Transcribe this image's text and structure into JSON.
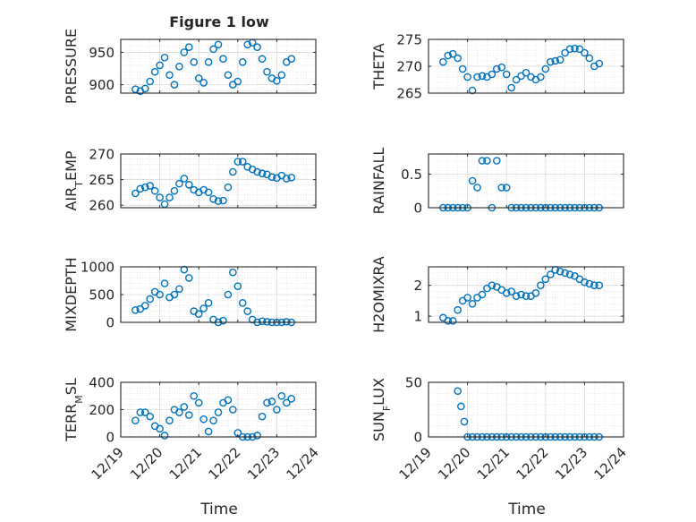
{
  "figure": {
    "title": "Figure 1 low",
    "xlabel": "Time",
    "x_ticks": [
      {
        "value": "2000-12-19",
        "label": "12/19"
      },
      {
        "value": "2000-12-20",
        "label": "12/20"
      },
      {
        "value": "2000-12-21",
        "label": "12/21"
      },
      {
        "value": "2000-12-22",
        "label": "12/22"
      },
      {
        "value": "2000-12-23",
        "label": "12/23"
      },
      {
        "value": "2000-12-24",
        "label": "12/24"
      }
    ],
    "xlim": [
      "2000-12-19",
      "2000-12-24"
    ],
    "marker_color": "#0072BD",
    "axis_color": "#262626",
    "grid": true
  },
  "chart_data": [
    {
      "type": "scatter",
      "ylabel": "PRESSURE",
      "ylim": [
        887,
        970
      ],
      "yticks": [
        900,
        950
      ],
      "x": [
        "2000-12-19T09:00",
        "2000-12-19T12:00",
        "2000-12-19T15:00",
        "2000-12-19T18:00",
        "2000-12-19T21:00",
        "2000-12-20T00:00",
        "2000-12-20T03:00",
        "2000-12-20T06:00",
        "2000-12-20T09:00",
        "2000-12-20T12:00",
        "2000-12-20T15:00",
        "2000-12-20T18:00",
        "2000-12-20T21:00",
        "2000-12-21T00:00",
        "2000-12-21T03:00",
        "2000-12-21T06:00",
        "2000-12-21T09:00",
        "2000-12-21T12:00",
        "2000-12-21T15:00",
        "2000-12-21T18:00",
        "2000-12-21T21:00",
        "2000-12-22T00:00",
        "2000-12-22T03:00",
        "2000-12-22T06:00",
        "2000-12-22T09:00",
        "2000-12-22T12:00",
        "2000-12-22T15:00",
        "2000-12-22T18:00",
        "2000-12-22T21:00",
        "2000-12-23T00:00",
        "2000-12-23T03:00",
        "2000-12-23T06:00",
        "2000-12-23T09:00"
      ],
      "y": [
        893,
        890,
        894,
        905,
        920,
        930,
        942,
        915,
        900,
        928,
        950,
        958,
        935,
        910,
        903,
        935,
        955,
        962,
        940,
        915,
        900,
        905,
        935,
        962,
        965,
        958,
        940,
        920,
        910,
        906,
        915,
        935,
        940
      ]
    },
    {
      "type": "scatter",
      "ylabel": "THETA",
      "ylim": [
        265,
        275
      ],
      "yticks": [
        265,
        270,
        275
      ],
      "x": [
        "2000-12-19T09:00",
        "2000-12-19T12:00",
        "2000-12-19T15:00",
        "2000-12-19T18:00",
        "2000-12-19T21:00",
        "2000-12-20T00:00",
        "2000-12-20T03:00",
        "2000-12-20T06:00",
        "2000-12-20T09:00",
        "2000-12-20T12:00",
        "2000-12-20T15:00",
        "2000-12-20T18:00",
        "2000-12-20T21:00",
        "2000-12-21T00:00",
        "2000-12-21T03:00",
        "2000-12-21T06:00",
        "2000-12-21T09:00",
        "2000-12-21T12:00",
        "2000-12-21T15:00",
        "2000-12-21T18:00",
        "2000-12-21T21:00",
        "2000-12-22T00:00",
        "2000-12-22T03:00",
        "2000-12-22T06:00",
        "2000-12-22T09:00",
        "2000-12-22T12:00",
        "2000-12-22T15:00",
        "2000-12-22T18:00",
        "2000-12-22T21:00",
        "2000-12-23T00:00",
        "2000-12-23T03:00",
        "2000-12-23T06:00",
        "2000-12-23T09:00"
      ],
      "y": [
        270.8,
        272,
        272.3,
        271.5,
        269.5,
        268,
        265.5,
        268,
        268.2,
        268,
        268.5,
        269.5,
        269.8,
        268.5,
        266,
        267.5,
        268.2,
        268.8,
        268,
        267.5,
        268,
        269.5,
        270.8,
        271,
        271.2,
        272.5,
        273.2,
        273.3,
        273.2,
        272.5,
        271.5,
        270,
        270.5
      ]
    },
    {
      "type": "scatter",
      "ylabel": "AIR_TEMP",
      "ylim": [
        259.5,
        270
      ],
      "yticks": [
        260,
        265,
        270
      ],
      "x": [
        "2000-12-19T09:00",
        "2000-12-19T12:00",
        "2000-12-19T15:00",
        "2000-12-19T18:00",
        "2000-12-19T21:00",
        "2000-12-20T00:00",
        "2000-12-20T03:00",
        "2000-12-20T06:00",
        "2000-12-20T09:00",
        "2000-12-20T12:00",
        "2000-12-20T15:00",
        "2000-12-20T18:00",
        "2000-12-20T21:00",
        "2000-12-21T00:00",
        "2000-12-21T03:00",
        "2000-12-21T06:00",
        "2000-12-21T09:00",
        "2000-12-21T12:00",
        "2000-12-21T15:00",
        "2000-12-21T18:00",
        "2000-12-21T21:00",
        "2000-12-22T00:00",
        "2000-12-22T03:00",
        "2000-12-22T06:00",
        "2000-12-22T09:00",
        "2000-12-22T12:00",
        "2000-12-22T15:00",
        "2000-12-22T18:00",
        "2000-12-22T21:00",
        "2000-12-23T00:00",
        "2000-12-23T03:00",
        "2000-12-23T06:00",
        "2000-12-23T09:00"
      ],
      "y": [
        262.3,
        263.2,
        263.5,
        263.8,
        262.8,
        261.5,
        260.2,
        261.5,
        262.8,
        264.2,
        265.2,
        264,
        263,
        262.5,
        263,
        262.5,
        261.2,
        260.8,
        260.9,
        263.5,
        266.5,
        268.5,
        268.5,
        267.5,
        267,
        266.5,
        266.2,
        266,
        265.5,
        265.3,
        265.8,
        265.2,
        265.4
      ]
    },
    {
      "type": "scatter",
      "ylabel": "RAINFALL",
      "ylim": [
        0,
        0.8
      ],
      "yticks": [
        0,
        0.5
      ],
      "x": [
        "2000-12-19T09:00",
        "2000-12-19T12:00",
        "2000-12-19T15:00",
        "2000-12-19T18:00",
        "2000-12-19T21:00",
        "2000-12-20T00:00",
        "2000-12-20T03:00",
        "2000-12-20T06:00",
        "2000-12-20T09:00",
        "2000-12-20T12:00",
        "2000-12-20T15:00",
        "2000-12-20T18:00",
        "2000-12-20T21:00",
        "2000-12-21T00:00",
        "2000-12-21T03:00",
        "2000-12-21T06:00",
        "2000-12-21T09:00",
        "2000-12-21T12:00",
        "2000-12-21T15:00",
        "2000-12-21T18:00",
        "2000-12-21T21:00",
        "2000-12-22T00:00",
        "2000-12-22T03:00",
        "2000-12-22T06:00",
        "2000-12-22T09:00",
        "2000-12-22T12:00",
        "2000-12-22T15:00",
        "2000-12-22T18:00",
        "2000-12-22T21:00",
        "2000-12-23T00:00",
        "2000-12-23T03:00",
        "2000-12-23T06:00",
        "2000-12-23T09:00"
      ],
      "y": [
        0,
        0,
        0,
        0,
        0,
        0,
        0.4,
        0.3,
        0.7,
        0.7,
        0,
        0.7,
        0.3,
        0.3,
        0,
        0,
        0,
        0,
        0,
        0,
        0,
        0,
        0,
        0,
        0,
        0,
        0,
        0,
        0,
        0,
        0,
        0,
        0
      ]
    },
    {
      "type": "scatter",
      "ylabel": "MIXDEPTH",
      "ylim": [
        0,
        1000
      ],
      "yticks": [
        0,
        500,
        1000
      ],
      "x": [
        "2000-12-19T09:00",
        "2000-12-19T12:00",
        "2000-12-19T15:00",
        "2000-12-19T18:00",
        "2000-12-19T21:00",
        "2000-12-20T00:00",
        "2000-12-20T03:00",
        "2000-12-20T06:00",
        "2000-12-20T09:00",
        "2000-12-20T12:00",
        "2000-12-20T15:00",
        "2000-12-20T18:00",
        "2000-12-20T21:00",
        "2000-12-21T00:00",
        "2000-12-21T03:00",
        "2000-12-21T06:00",
        "2000-12-21T09:00",
        "2000-12-21T12:00",
        "2000-12-21T15:00",
        "2000-12-21T18:00",
        "2000-12-21T21:00",
        "2000-12-22T00:00",
        "2000-12-22T03:00",
        "2000-12-22T06:00",
        "2000-12-22T09:00",
        "2000-12-22T12:00",
        "2000-12-22T15:00",
        "2000-12-22T18:00",
        "2000-12-22T21:00",
        "2000-12-23T00:00",
        "2000-12-23T03:00",
        "2000-12-23T06:00",
        "2000-12-23T09:00"
      ],
      "y": [
        220,
        240,
        300,
        420,
        550,
        500,
        700,
        450,
        500,
        600,
        950,
        800,
        200,
        150,
        250,
        350,
        50,
        0,
        30,
        500,
        900,
        650,
        350,
        200,
        50,
        0,
        20,
        10,
        0,
        0,
        0,
        10,
        0
      ]
    },
    {
      "type": "scatter",
      "ylabel": "H2OMIXRA",
      "ylim": [
        0.8,
        2.6
      ],
      "yticks": [
        1,
        2
      ],
      "x": [
        "2000-12-19T09:00",
        "2000-12-19T12:00",
        "2000-12-19T15:00",
        "2000-12-19T18:00",
        "2000-12-19T21:00",
        "2000-12-20T00:00",
        "2000-12-20T03:00",
        "2000-12-20T06:00",
        "2000-12-20T09:00",
        "2000-12-20T12:00",
        "2000-12-20T15:00",
        "2000-12-20T18:00",
        "2000-12-20T21:00",
        "2000-12-21T00:00",
        "2000-12-21T03:00",
        "2000-12-21T06:00",
        "2000-12-21T09:00",
        "2000-12-21T12:00",
        "2000-12-21T15:00",
        "2000-12-21T18:00",
        "2000-12-21T21:00",
        "2000-12-22T00:00",
        "2000-12-22T03:00",
        "2000-12-22T06:00",
        "2000-12-22T09:00",
        "2000-12-22T12:00",
        "2000-12-22T15:00",
        "2000-12-22T18:00",
        "2000-12-22T21:00",
        "2000-12-23T00:00",
        "2000-12-23T03:00",
        "2000-12-23T06:00",
        "2000-12-23T09:00"
      ],
      "y": [
        0.95,
        0.85,
        0.85,
        1.2,
        1.5,
        1.6,
        1.4,
        1.6,
        1.7,
        1.9,
        2.0,
        1.95,
        1.85,
        1.75,
        1.8,
        1.65,
        1.7,
        1.65,
        1.65,
        1.75,
        2.0,
        2.2,
        2.35,
        2.5,
        2.45,
        2.4,
        2.35,
        2.3,
        2.2,
        2.1,
        2.05,
        2.0,
        2.0
      ]
    },
    {
      "type": "scatter",
      "ylabel": "TERR_MSL",
      "ylim": [
        0,
        400
      ],
      "yticks": [
        0,
        200,
        400
      ],
      "x": [
        "2000-12-19T09:00",
        "2000-12-19T12:00",
        "2000-12-19T15:00",
        "2000-12-19T18:00",
        "2000-12-19T21:00",
        "2000-12-20T00:00",
        "2000-12-20T03:00",
        "2000-12-20T06:00",
        "2000-12-20T09:00",
        "2000-12-20T12:00",
        "2000-12-20T15:00",
        "2000-12-20T18:00",
        "2000-12-20T21:00",
        "2000-12-21T00:00",
        "2000-12-21T03:00",
        "2000-12-21T06:00",
        "2000-12-21T09:00",
        "2000-12-21T12:00",
        "2000-12-21T15:00",
        "2000-12-21T18:00",
        "2000-12-21T21:00",
        "2000-12-22T00:00",
        "2000-12-22T03:00",
        "2000-12-22T06:00",
        "2000-12-22T09:00",
        "2000-12-22T12:00",
        "2000-12-22T15:00",
        "2000-12-22T18:00",
        "2000-12-22T21:00",
        "2000-12-23T00:00",
        "2000-12-23T03:00",
        "2000-12-23T06:00",
        "2000-12-23T09:00"
      ],
      "y": [
        120,
        180,
        180,
        150,
        80,
        60,
        10,
        120,
        200,
        180,
        220,
        160,
        300,
        250,
        130,
        40,
        120,
        180,
        250,
        270,
        200,
        30,
        0,
        0,
        0,
        10,
        150,
        250,
        260,
        200,
        300,
        250,
        280
      ]
    },
    {
      "type": "scatter",
      "ylabel": "SUN_FLUX",
      "ylim": [
        0,
        50
      ],
      "yticks": [
        0,
        50
      ],
      "x": [
        "2000-12-19T18:00",
        "2000-12-19T20:00",
        "2000-12-19T22:00",
        "2000-12-20T00:00",
        "2000-12-20T03:00",
        "2000-12-20T06:00",
        "2000-12-20T09:00",
        "2000-12-20T12:00",
        "2000-12-20T15:00",
        "2000-12-20T18:00",
        "2000-12-20T21:00",
        "2000-12-21T00:00",
        "2000-12-21T03:00",
        "2000-12-21T06:00",
        "2000-12-21T09:00",
        "2000-12-21T12:00",
        "2000-12-21T15:00",
        "2000-12-21T18:00",
        "2000-12-21T21:00",
        "2000-12-22T00:00",
        "2000-12-22T03:00",
        "2000-12-22T06:00",
        "2000-12-22T09:00",
        "2000-12-22T12:00",
        "2000-12-22T15:00",
        "2000-12-22T18:00",
        "2000-12-22T21:00",
        "2000-12-23T00:00",
        "2000-12-23T03:00",
        "2000-12-23T06:00",
        "2000-12-23T09:00"
      ],
      "y": [
        42,
        28,
        14,
        0,
        0,
        0,
        0,
        0,
        0,
        0,
        0,
        0,
        0,
        0,
        0,
        0,
        0,
        0,
        0,
        0,
        0,
        0,
        0,
        0,
        0,
        0,
        0,
        0,
        0,
        0,
        0
      ]
    }
  ]
}
